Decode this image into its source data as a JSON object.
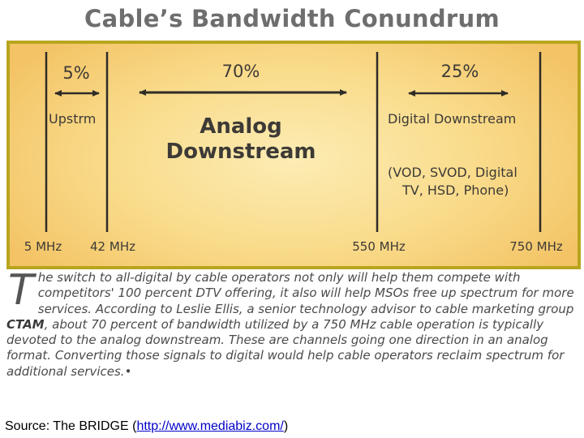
{
  "title": "Cable’s Bandwidth Conundrum",
  "diagram": {
    "segments": [
      {
        "percent": "5%",
        "label": "Upstrm"
      },
      {
        "percent": "70%",
        "label_line1": "Analog",
        "label_line2": "Downstream"
      },
      {
        "percent": "25%",
        "label": "Digital Downstream",
        "sub_line1": "(VOD, SVOD, Digital",
        "sub_line2": "TV, HSD, Phone)"
      }
    ],
    "frequencies": [
      "5 MHz",
      "42 MHz",
      "550 MHz",
      "750 MHz"
    ]
  },
  "article": {
    "dropcap": "T",
    "text_1": "he switch to all-digital by cable operators not only will help them compete with competitors' 100 percent DTV offering, it also will help MSOs free up spectrum for more services. According to Leslie Ellis, a senior technology advisor to cable marketing group ",
    "bold": "CTAM",
    "text_2": ", about 70 percent of bandwidth utilized by a 750 MHz cable operation is typically devoted to the analog downstream. These are channels going one direction in an analog format. Converting those signals to digital would help cable operators reclaim spectrum for additional services.",
    "end_mark": "•"
  },
  "source": {
    "label": "Source: The BRIDGE (",
    "link": "http://www.mediabiz.com/",
    "close": ")"
  }
}
